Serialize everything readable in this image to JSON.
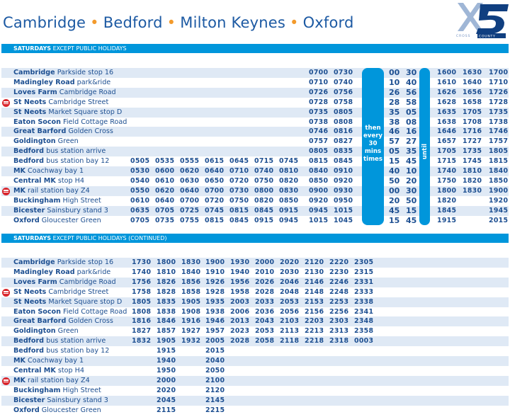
{
  "header": {
    "title_parts": [
      "Cambridge",
      "Bedford",
      "Milton Keynes",
      "Oxford"
    ],
    "separator": "•",
    "logo": {
      "text": "X5",
      "subtitle": "CROSS COUNTY"
    }
  },
  "colors": {
    "brand_blue": "#0096db",
    "title_blue": "#1d5aa3",
    "accent_orange": "#f39a2b",
    "row_stripe": "#dfe9f5",
    "rail_red": "#d9262c"
  },
  "stops": [
    {
      "bold": "Cambridge",
      "rest": " Parkside stop 16",
      "rail": false
    },
    {
      "bold": "Madingley Road",
      "rest": " park&ride",
      "rail": false
    },
    {
      "bold": "Loves Farm",
      "rest": " Cambridge Road",
      "rail": false
    },
    {
      "bold": "St Neots",
      "rest": " Cambridge Street",
      "rail": true
    },
    {
      "bold": "St Neots",
      "rest": " Market Square stop D",
      "rail": false
    },
    {
      "bold": "Eaton Socon",
      "rest": " Field Cottage Road",
      "rail": false
    },
    {
      "bold": "Great Barford",
      "rest": " Golden Cross",
      "rail": false
    },
    {
      "bold": "Goldington",
      "rest": " Green",
      "rail": false
    },
    {
      "bold": "Bedford",
      "rest": " bus station arrive",
      "rail": false
    },
    {
      "bold": "Bedford",
      "rest": " bus station bay 12",
      "rail": false
    },
    {
      "bold": "MK",
      "rest": " Coachway bay 1",
      "rail": false
    },
    {
      "bold": "Central MK",
      "rest": " stop H4",
      "rail": false
    },
    {
      "bold": "MK",
      "rest": " rail station bay Z4",
      "rail": true
    },
    {
      "bold": "Buckingham",
      "rest": " High Street",
      "rail": false
    },
    {
      "bold": "Bicester",
      "rest": " Sainsbury stand 3",
      "rail": false
    },
    {
      "bold": "Oxford",
      "rest": " Gloucester Green",
      "rail": false
    }
  ],
  "table1": {
    "heading_bold": "SATURDAYS",
    "heading_rest": " EXCEPT PUBLIC HOLIDAYS",
    "times": [
      [
        "",
        "",
        "",
        "",
        "",
        "",
        "",
        "0700",
        "0730"
      ],
      [
        "",
        "",
        "",
        "",
        "",
        "",
        "",
        "0710",
        "0740"
      ],
      [
        "",
        "",
        "",
        "",
        "",
        "",
        "",
        "0726",
        "0756"
      ],
      [
        "",
        "",
        "",
        "",
        "",
        "",
        "",
        "0728",
        "0758"
      ],
      [
        "",
        "",
        "",
        "",
        "",
        "",
        "",
        "0735",
        "0805"
      ],
      [
        "",
        "",
        "",
        "",
        "",
        "",
        "",
        "0738",
        "0808"
      ],
      [
        "",
        "",
        "",
        "",
        "",
        "",
        "",
        "0746",
        "0816"
      ],
      [
        "",
        "",
        "",
        "",
        "",
        "",
        "",
        "0757",
        "0827"
      ],
      [
        "",
        "",
        "",
        "",
        "",
        "",
        "",
        "0805",
        "0835"
      ],
      [
        "0505",
        "0535",
        "0555",
        "0615",
        "0645",
        "0715",
        "0745",
        "0815",
        "0845"
      ],
      [
        "0530",
        "0600",
        "0620",
        "0640",
        "0710",
        "0740",
        "0810",
        "0840",
        "0910"
      ],
      [
        "0540",
        "0610",
        "0630",
        "0650",
        "0720",
        "0750",
        "0820",
        "0850",
        "0920"
      ],
      [
        "0550",
        "0620",
        "0640",
        "0700",
        "0730",
        "0800",
        "0830",
        "0900",
        "0930"
      ],
      [
        "0610",
        "0640",
        "0700",
        "0720",
        "0750",
        "0820",
        "0850",
        "0920",
        "0950"
      ],
      [
        "0635",
        "0705",
        "0725",
        "0745",
        "0815",
        "0845",
        "0915",
        "0945",
        "1015"
      ],
      [
        "0705",
        "0735",
        "0755",
        "0815",
        "0845",
        "0915",
        "0945",
        "1015",
        "1045"
      ]
    ],
    "frequency_label": "then every 30 mins times",
    "minutes": [
      [
        "00",
        "30"
      ],
      [
        "10",
        "40"
      ],
      [
        "26",
        "56"
      ],
      [
        "28",
        "58"
      ],
      [
        "35",
        "05"
      ],
      [
        "38",
        "08"
      ],
      [
        "46",
        "16"
      ],
      [
        "57",
        "27"
      ],
      [
        "05",
        "35"
      ],
      [
        "15",
        "45"
      ],
      [
        "40",
        "10"
      ],
      [
        "50",
        "20"
      ],
      [
        "00",
        "30"
      ],
      [
        "20",
        "50"
      ],
      [
        "45",
        "15"
      ],
      [
        "15",
        "45"
      ]
    ],
    "until_label": "until",
    "after": [
      [
        "1600",
        "1630",
        "1700"
      ],
      [
        "1610",
        "1640",
        "1710"
      ],
      [
        "1626",
        "1656",
        "1726"
      ],
      [
        "1628",
        "1658",
        "1728"
      ],
      [
        "1635",
        "1705",
        "1735"
      ],
      [
        "1638",
        "1708",
        "1738"
      ],
      [
        "1646",
        "1716",
        "1746"
      ],
      [
        "1657",
        "1727",
        "1757"
      ],
      [
        "1705",
        "1735",
        "1805"
      ],
      [
        "1715",
        "1745",
        "1815"
      ],
      [
        "1740",
        "1810",
        "1840"
      ],
      [
        "1750",
        "1820",
        "1850"
      ],
      [
        "1800",
        "1830",
        "1900"
      ],
      [
        "1820",
        "",
        "1920"
      ],
      [
        "1845",
        "",
        "1945"
      ],
      [
        "1915",
        "",
        "2015"
      ]
    ]
  },
  "table2": {
    "heading_bold": "SATURDAYS",
    "heading_rest": " EXCEPT PUBLIC HOLIDAYS (CONTINUED)",
    "times": [
      [
        "1730",
        "1800",
        "1830",
        "1900",
        "1930",
        "2000",
        "2020",
        "2120",
        "2220",
        "2305"
      ],
      [
        "1740",
        "1810",
        "1840",
        "1910",
        "1940",
        "2010",
        "2030",
        "2130",
        "2230",
        "2315"
      ],
      [
        "1756",
        "1826",
        "1856",
        "1926",
        "1956",
        "2026",
        "2046",
        "2146",
        "2246",
        "2331"
      ],
      [
        "1758",
        "1828",
        "1858",
        "1928",
        "1958",
        "2028",
        "2048",
        "2148",
        "2248",
        "2333"
      ],
      [
        "1805",
        "1835",
        "1905",
        "1935",
        "2003",
        "2033",
        "2053",
        "2153",
        "2253",
        "2338"
      ],
      [
        "1808",
        "1838",
        "1908",
        "1938",
        "2006",
        "2036",
        "2056",
        "2156",
        "2256",
        "2341"
      ],
      [
        "1816",
        "1846",
        "1916",
        "1946",
        "2013",
        "2043",
        "2103",
        "2203",
        "2303",
        "2348"
      ],
      [
        "1827",
        "1857",
        "1927",
        "1957",
        "2023",
        "2053",
        "2113",
        "2213",
        "2313",
        "2358"
      ],
      [
        "1832",
        "1905",
        "1932",
        "2005",
        "2028",
        "2058",
        "2118",
        "2218",
        "2318",
        "0003"
      ],
      [
        "",
        "1915",
        "",
        "2015",
        "",
        "",
        "",
        "",
        "",
        ""
      ],
      [
        "",
        "1940",
        "",
        "2040",
        "",
        "",
        "",
        "",
        "",
        ""
      ],
      [
        "",
        "1950",
        "",
        "2050",
        "",
        "",
        "",
        "",
        "",
        ""
      ],
      [
        "",
        "2000",
        "",
        "2100",
        "",
        "",
        "",
        "",
        "",
        ""
      ],
      [
        "",
        "2020",
        "",
        "2120",
        "",
        "",
        "",
        "",
        "",
        ""
      ],
      [
        "",
        "2045",
        "",
        "2145",
        "",
        "",
        "",
        "",
        "",
        ""
      ],
      [
        "",
        "2115",
        "",
        "2215",
        "",
        "",
        "",
        "",
        "",
        ""
      ]
    ]
  }
}
